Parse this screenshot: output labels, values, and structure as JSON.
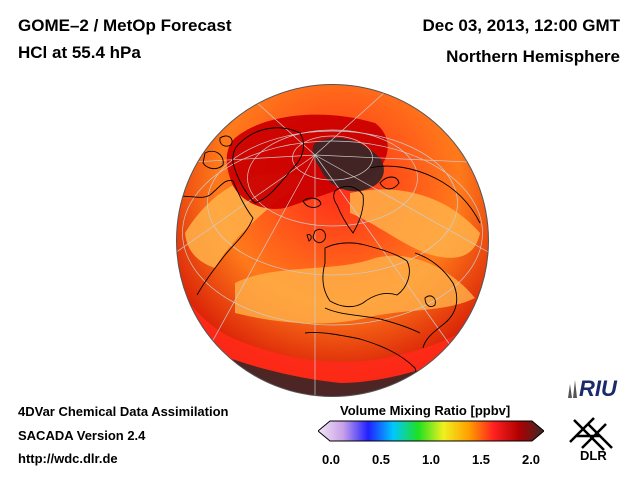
{
  "header": {
    "title": "GOME–2 / MetOp Forecast",
    "species": "HCl at 55.4 hPa",
    "datetime": "Dec 03, 2013, 12:00 GMT",
    "hemisphere": "Northern Hemisphere"
  },
  "footer": {
    "line1": "4DVar Chemical Data Assimilation",
    "line2": "SACADA Version 2.4",
    "url": "http://wdc.dlr.de"
  },
  "colorbar": {
    "label": "Volume Mixing Ratio [ppbv]",
    "ticks": [
      "0.0",
      "0.5",
      "1.0",
      "1.5",
      "2.0"
    ],
    "colors": [
      "#f4e7f4",
      "#c8a0e8",
      "#2020ff",
      "#00c8ff",
      "#20e020",
      "#f0f020",
      "#ffa000",
      "#ff2020",
      "#b00000",
      "#3a2828"
    ]
  },
  "map": {
    "projection": "orthographic",
    "center": "north-pole",
    "palette": {
      "low": "#ffb24a",
      "mid": "#ff7a1a",
      "high": "#ff2a1a",
      "very_high": "#cc0000",
      "max": "#3a2626",
      "graticule": "#cccccc",
      "coastline": "#000000"
    }
  },
  "logos": {
    "riu": "RIU",
    "dlr": "DLR"
  }
}
